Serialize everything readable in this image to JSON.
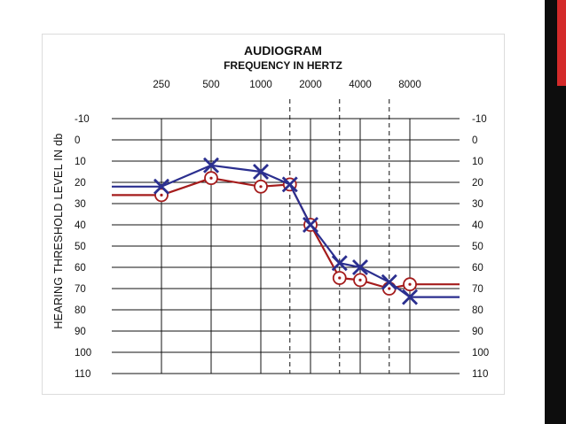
{
  "colors": {
    "slide_bar": "#0d0d0d",
    "slide_accent": "#d42a2a",
    "left_ear": "#2b2f8f",
    "right_ear": "#a51c1c",
    "grid": "#111111"
  },
  "chart_data": {
    "type": "line",
    "title": "AUDIOGRAM",
    "subtitle": "FREQUENCY IN HERTZ",
    "ylabel": "HEARING THRESHOLD LEVEL IN db",
    "x_ticks": [
      "250",
      "500",
      "1000",
      "2000",
      "4000",
      "8000"
    ],
    "x_tick_values": [
      250,
      500,
      1000,
      2000,
      4000,
      8000
    ],
    "x_dashed_values": [
      1500,
      3000,
      6000
    ],
    "x_scale": "log2",
    "xlim": [
      125,
      16000
    ],
    "y_ticks": [
      "-10",
      "0",
      "10",
      "20",
      "30",
      "40",
      "50",
      "60",
      "70",
      "80",
      "90",
      "100",
      "110"
    ],
    "ylim": [
      -10,
      110
    ],
    "y_inverted": true,
    "grid": true,
    "series": [
      {
        "marker": "x",
        "color": "#2b2f8f",
        "x": [
          125,
          250,
          500,
          1000,
          1500,
          2000,
          3000,
          4000,
          6000,
          8000,
          16000
        ],
        "y": [
          22,
          22,
          12,
          15,
          21,
          40,
          58,
          60,
          67,
          74,
          74
        ],
        "marked": [
          false,
          true,
          true,
          true,
          true,
          true,
          true,
          true,
          true,
          true,
          false
        ]
      },
      {
        "marker": "o",
        "color": "#a51c1c",
        "x": [
          125,
          250,
          500,
          1000,
          1500,
          2000,
          3000,
          4000,
          6000,
          8000,
          16000
        ],
        "y": [
          26,
          26,
          18,
          22,
          21,
          40,
          65,
          66,
          70,
          68,
          68
        ],
        "marked": [
          false,
          true,
          true,
          true,
          true,
          true,
          true,
          true,
          true,
          true,
          false
        ]
      }
    ]
  }
}
